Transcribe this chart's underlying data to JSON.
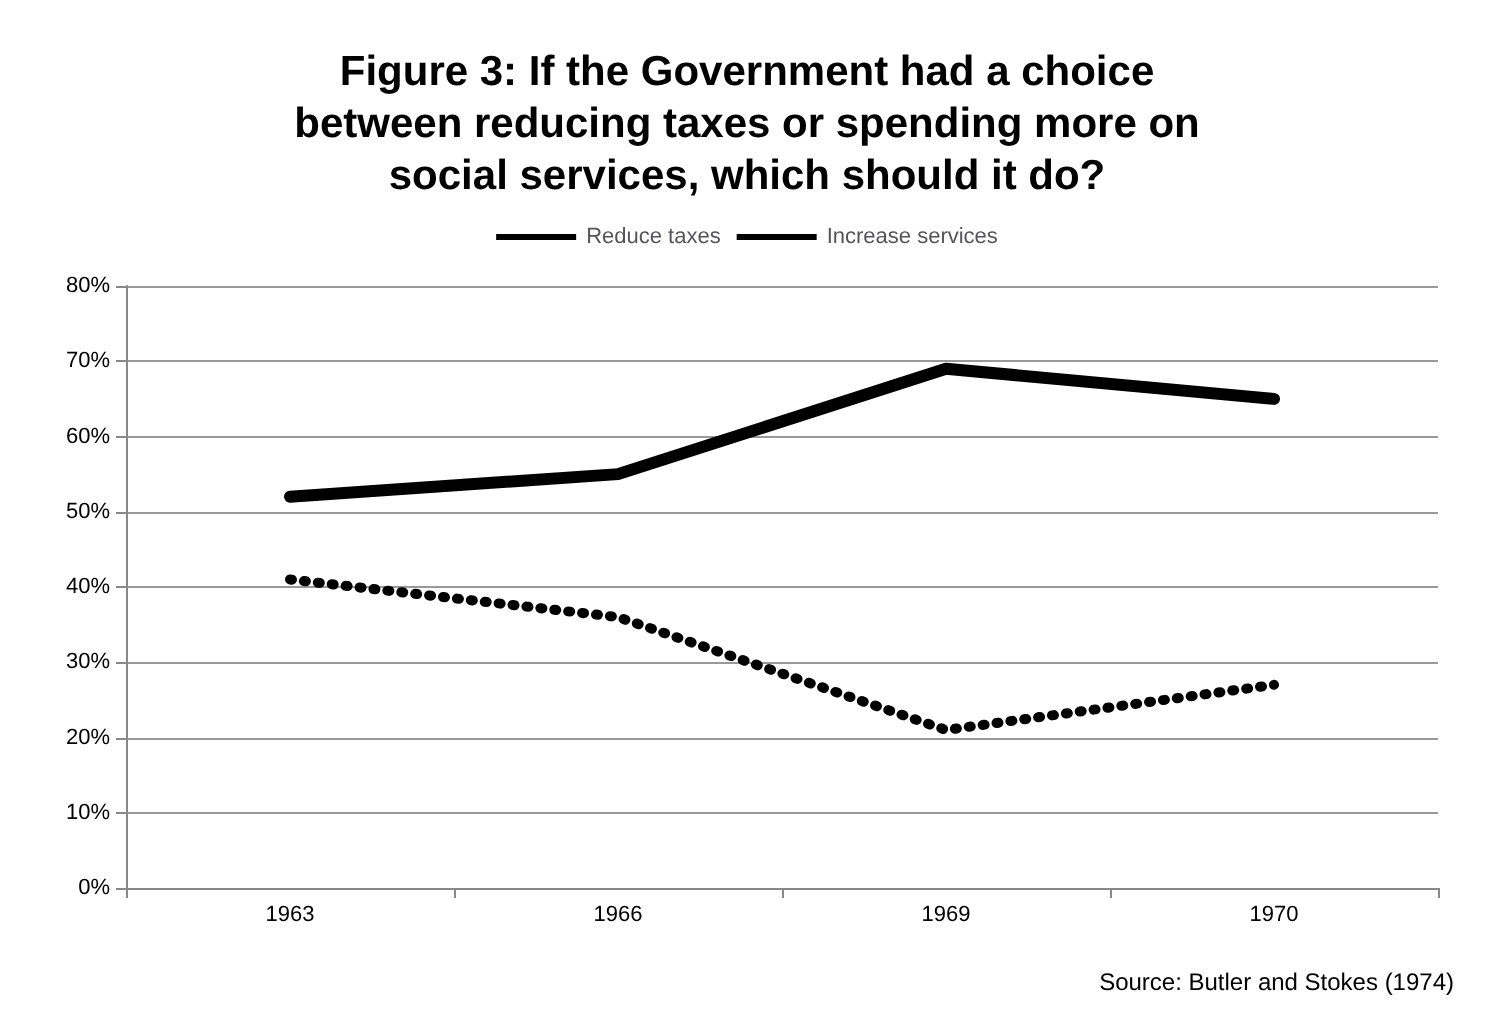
{
  "chart_data": {
    "type": "line",
    "title": "Figure 3: If the Government had a choice\nbetween reducing taxes or spending more on\nsocial services, which should it do?",
    "categories": [
      "1963",
      "1966",
      "1969",
      "1970"
    ],
    "series": [
      {
        "name": "Reduce taxes",
        "color": "#000000",
        "values": [
          52,
          55,
          69,
          65
        ],
        "line_style": "solid"
      },
      {
        "name": "Increase services",
        "color": "#000000",
        "values": [
          41,
          36,
          21,
          27
        ],
        "line_style": "dotted"
      }
    ],
    "ylim": [
      0,
      80
    ],
    "yticks": [
      {
        "value": 0,
        "label": "0%"
      },
      {
        "value": 10,
        "label": "10%"
      },
      {
        "value": 20,
        "label": "20%"
      },
      {
        "value": 30,
        "label": "30%"
      },
      {
        "value": 40,
        "label": "40%"
      },
      {
        "value": 50,
        "label": "50%"
      },
      {
        "value": 60,
        "label": "60%"
      },
      {
        "value": 70,
        "label": "70%"
      },
      {
        "value": 80,
        "label": "80%"
      }
    ],
    "grid": "y",
    "legend": "top",
    "marker": "none",
    "annotations": [
      "Source: Butler and Stokes (1974)"
    ]
  }
}
